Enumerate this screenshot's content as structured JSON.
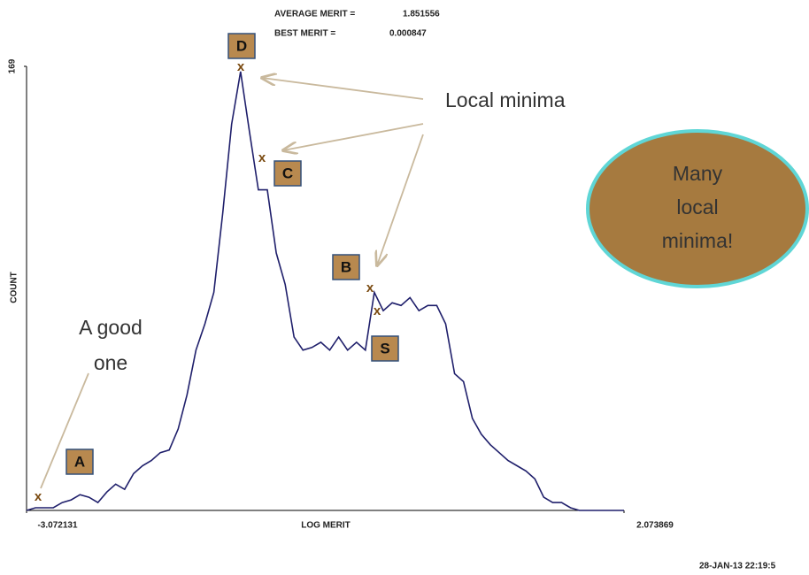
{
  "chart_data": {
    "type": "line",
    "stats": [
      {
        "label": "AVERAGE MERIT =",
        "value": "1.851556"
      },
      {
        "label": "BEST MERIT =",
        "value": "0.000847"
      }
    ],
    "x_label": "LOG MERIT",
    "y_label": "COUNT",
    "xlim": [
      -3.072131,
      2.073869
    ],
    "xticks": [
      {
        "value": -3.072131,
        "label": "-3.072131"
      },
      {
        "value": 2.073869,
        "label": "2.073869"
      }
    ],
    "ylim": [
      0,
      169
    ],
    "yticks": [
      169
    ],
    "color": "#1f1f6b",
    "values": [
      0,
      1,
      1,
      1,
      3,
      4,
      6,
      5,
      3,
      7,
      10,
      8,
      14,
      17,
      19,
      22,
      23,
      31,
      44,
      61,
      71,
      83,
      113,
      147,
      167,
      144,
      122,
      122,
      98,
      86,
      66,
      61,
      62,
      64,
      61,
      66,
      61,
      64,
      61,
      83,
      76,
      79,
      78,
      81,
      76,
      78,
      78,
      71,
      52,
      49,
      35,
      29,
      25,
      22,
      19,
      17,
      15,
      12,
      5,
      3,
      3,
      1,
      0,
      0,
      0,
      0,
      0,
      0
    ],
    "annotations": {
      "boxes": [
        "D",
        "C",
        "B",
        "S",
        "A"
      ],
      "markers": [
        "x",
        "x",
        "x",
        "x",
        "x"
      ],
      "local_minima": "Local minima",
      "good_one": [
        "A good",
        "one"
      ],
      "bubble": [
        "Many",
        "local",
        "minima!"
      ]
    },
    "timestamp": "28-JAN-13 22:19:5"
  }
}
